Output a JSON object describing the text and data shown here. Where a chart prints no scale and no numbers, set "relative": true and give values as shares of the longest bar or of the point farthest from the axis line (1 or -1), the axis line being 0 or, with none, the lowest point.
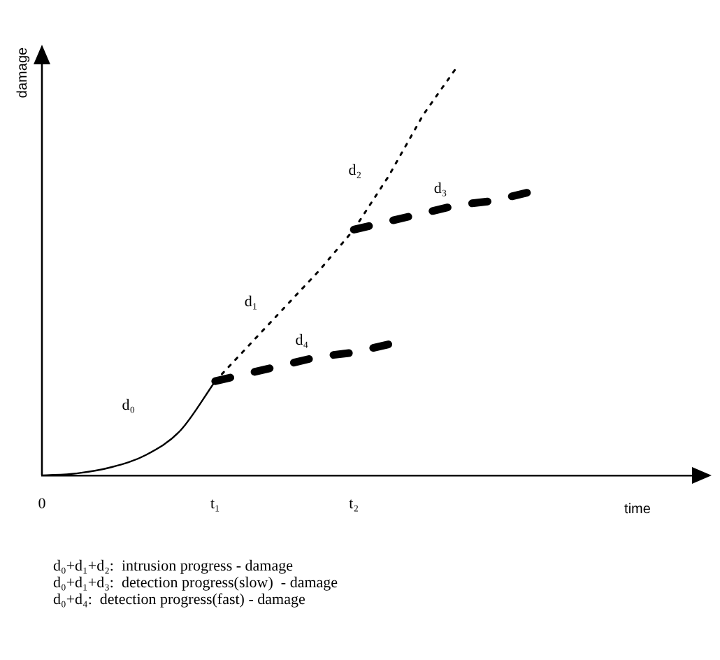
{
  "chart_data": {
    "type": "line",
    "relative": true,
    "xlabel": "time",
    "ylabel": "damage",
    "categories": [
      "0",
      null,
      null,
      null,
      null,
      "t₁",
      null,
      null,
      null,
      "t₂",
      null,
      null,
      null,
      null,
      null,
      null,
      null,
      null,
      null,
      null
    ],
    "series": [
      {
        "name": "d₀",
        "color": "#000000",
        "line_style": "solid",
        "values": [
          0,
          0.005,
          0.02,
          0.05,
          0.11,
          0.23,
          null,
          null,
          null,
          null,
          null,
          null,
          null,
          null,
          null,
          null,
          null,
          null,
          null,
          null
        ]
      },
      {
        "color": "#000000",
        "line_style": "dotted",
        "values": [
          null,
          null,
          null,
          null,
          null,
          0.23,
          0.32,
          0.41,
          0.5,
          0.6,
          0.73,
          0.88,
          1,
          null,
          null,
          null,
          null,
          null,
          null,
          null
        ]
      },
      {
        "name": "d₃",
        "color": "#000000",
        "line_style": "dashed",
        "values": [
          null,
          null,
          null,
          null,
          null,
          null,
          null,
          null,
          null,
          0.6,
          0.62,
          0.64,
          0.66,
          0.67,
          0.69,
          null,
          null,
          null,
          null,
          null
        ]
      },
      {
        "name": "d₄",
        "color": "#000000",
        "line_style": "dashed",
        "values": [
          null,
          null,
          null,
          null,
          null,
          0.23,
          0.25,
          0.27,
          0.29,
          0.3,
          0.32,
          null,
          null,
          null,
          null,
          null,
          null,
          null,
          null,
          null
        ]
      }
    ],
    "annotations": [
      "d₁",
      "d₂",
      "d₀+d₁+d₂:  intrusion progress - damage",
      "d₀+d₁+d₃:  detection progress(slow)  - damage",
      "d₀+d₄:  detection progress(fast) - damage"
    ],
    "grid": false,
    "legend": false,
    "marker": "none"
  }
}
